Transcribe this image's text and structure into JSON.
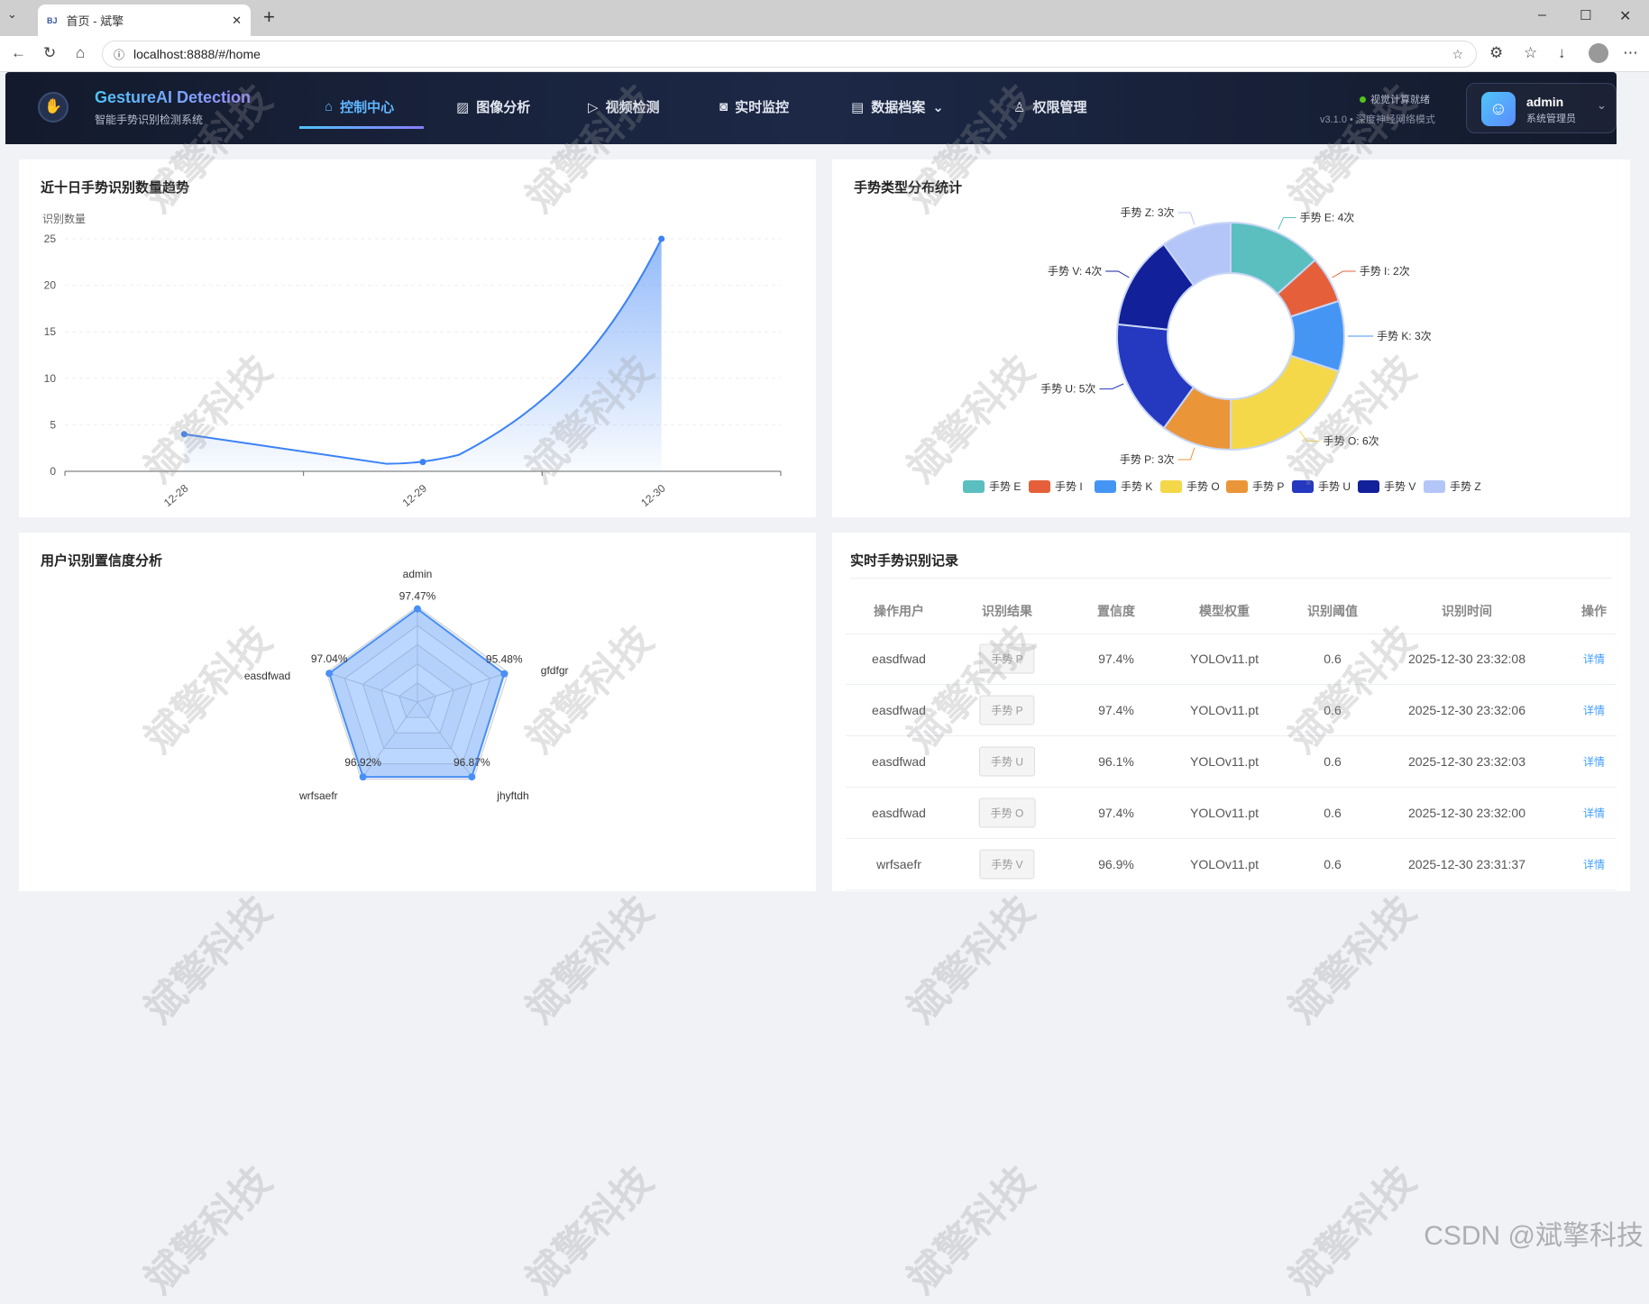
{
  "browser": {
    "tab_title": "首页 - 斌擎",
    "url": "localhost:8888/#/home"
  },
  "header": {
    "title": "GestureAI Detection",
    "subtitle": "智能手势识别检测系统",
    "nav": [
      {
        "label": "控制中心",
        "icon": "home-icon",
        "active": true
      },
      {
        "label": "图像分析",
        "icon": "image-icon"
      },
      {
        "label": "视频检测",
        "icon": "play-icon"
      },
      {
        "label": "实时监控",
        "icon": "camera-icon"
      },
      {
        "label": "数据档案",
        "icon": "document-icon"
      },
      {
        "label": "权限管理",
        "icon": "user-icon"
      }
    ],
    "status": "视觉计算就绪",
    "version": "v3.1.0 • 深度神经网络模式",
    "user": {
      "name": "admin",
      "role": "系统管理员"
    }
  },
  "colors": {
    "accent": "#409eff",
    "status": "#52c41a"
  },
  "chart_data": [
    {
      "type": "area",
      "title": "近十日手势识别数量趋势",
      "ylabel": "识别数量",
      "categories": [
        "12-28",
        "12-29",
        "12-30"
      ],
      "values": [
        4,
        1,
        25
      ],
      "ylim": [
        0,
        25
      ],
      "yticks": [
        0,
        5,
        10,
        15,
        20,
        25
      ],
      "color": "#3b82f6"
    },
    {
      "type": "pie",
      "title": "手势类型分布统计",
      "unit": "次",
      "legend": "bottom",
      "slices": [
        {
          "name": "手势 E",
          "value": 4,
          "color": "#5bbfc0"
        },
        {
          "name": "手势 I",
          "value": 2,
          "color": "#e5603a"
        },
        {
          "name": "手势 K",
          "value": 3,
          "color": "#4595f5"
        },
        {
          "name": "手势 O",
          "value": 6,
          "color": "#f4d84a"
        },
        {
          "name": "手势 P",
          "value": 3,
          "color": "#eb9539"
        },
        {
          "name": "手势 U",
          "value": 5,
          "color": "#2438c0"
        },
        {
          "name": "手势 V",
          "value": 4,
          "color": "#12209a"
        },
        {
          "name": "手势 Z",
          "value": 3,
          "color": "#b4c5f7"
        }
      ]
    },
    {
      "type": "radar",
      "title": "用户识别置信度分析",
      "max": 100,
      "indicators": [
        "admin",
        "gfdfgr",
        "jhyftdh",
        "wrfsaefr",
        "easdfwad"
      ],
      "values": [
        97.47,
        95.48,
        96.87,
        96.92,
        97.04
      ],
      "labels": [
        "97.47%",
        "95.48%",
        "96.87%",
        "96.92%",
        "97.04%"
      ]
    }
  ],
  "records": {
    "title": "实时手势识别记录",
    "columns": [
      "操作用户",
      "识别结果",
      "置信度",
      "模型权重",
      "识别阈值",
      "识别时间",
      "操作"
    ],
    "rows": [
      [
        "easdfwad",
        "手势 P",
        "97.4%",
        "YOLOv11.pt",
        "0.6",
        "2025-12-30 23:32:08",
        "详情"
      ],
      [
        "easdfwad",
        "手势 P",
        "97.4%",
        "YOLOv11.pt",
        "0.6",
        "2025-12-30 23:32:06",
        "详情"
      ],
      [
        "easdfwad",
        "手势 U",
        "96.1%",
        "YOLOv11.pt",
        "0.6",
        "2025-12-30 23:32:03",
        "详情"
      ],
      [
        "easdfwad",
        "手势 O",
        "97.4%",
        "YOLOv11.pt",
        "0.6",
        "2025-12-30 23:32:00",
        "详情"
      ],
      [
        "wrfsaefr",
        "手势 V",
        "96.9%",
        "YOLOv11.pt",
        "0.6",
        "2025-12-30 23:31:37",
        "详情"
      ]
    ]
  },
  "watermark": "斌擎科技",
  "footer_mark": "CSDN @斌擎科技"
}
